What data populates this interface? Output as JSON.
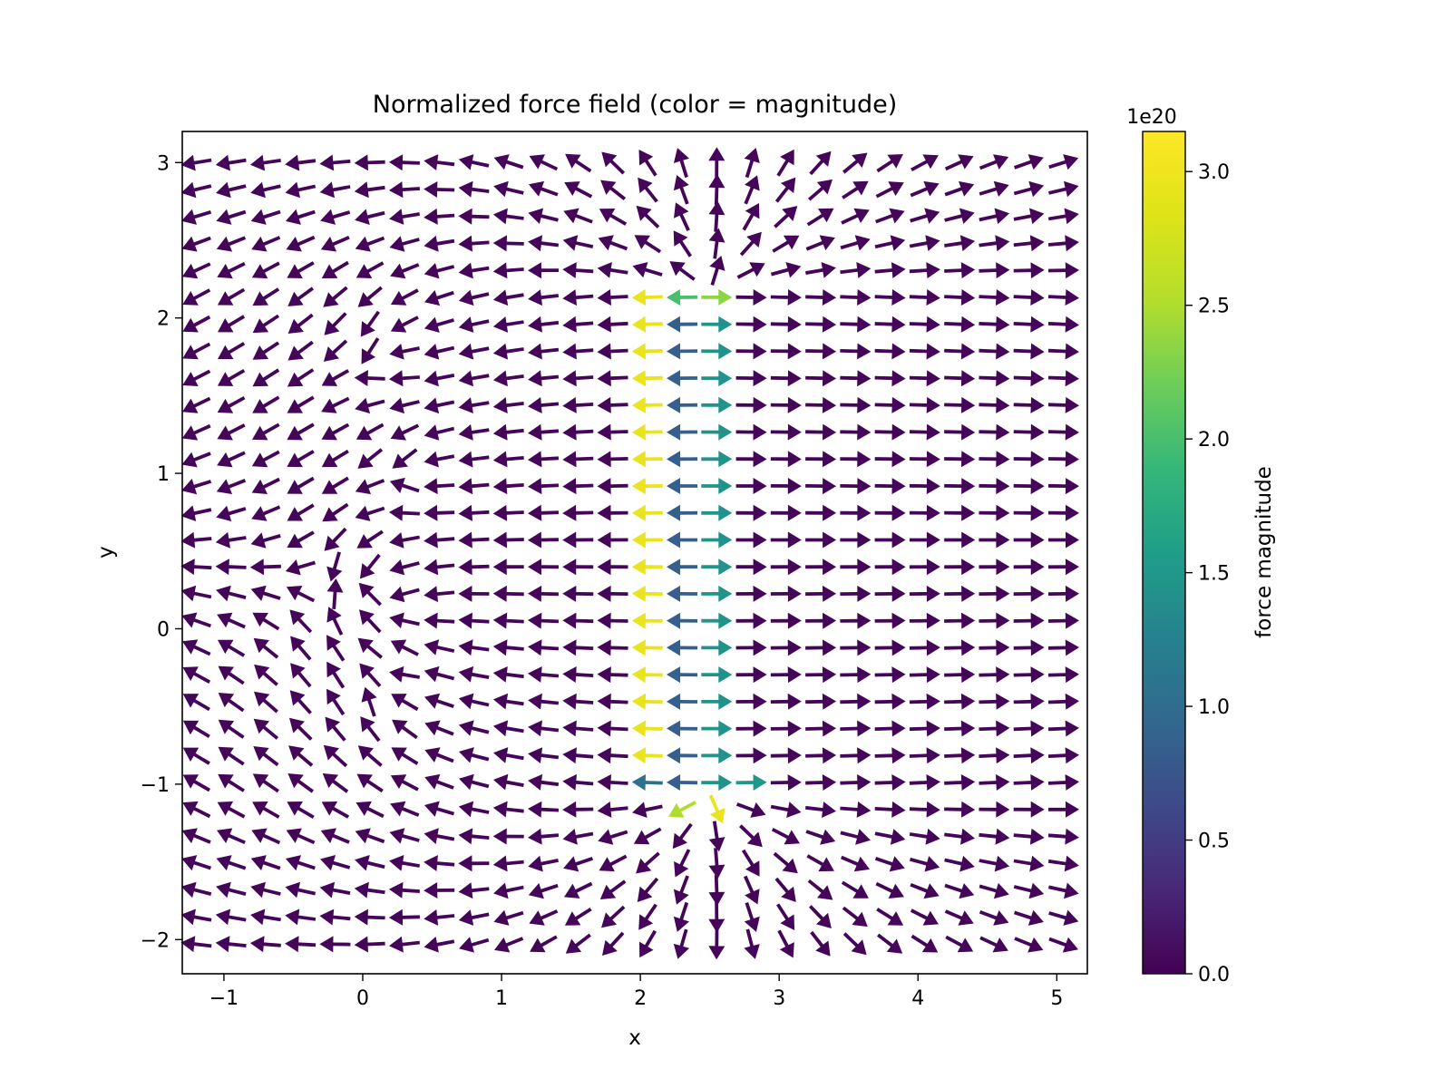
{
  "chart_data": {
    "type": "quiver",
    "title": "Normalized force field (color = magnitude)",
    "xlabel": "x",
    "ylabel": "y",
    "xlim": [
      -1.3,
      5.22
    ],
    "ylim": [
      -2.22,
      3.2
    ],
    "xticks": [
      -1,
      0,
      1,
      2,
      3,
      4,
      5
    ],
    "yticks": [
      -2,
      -1,
      0,
      1,
      2,
      3
    ],
    "xtick_labels": [
      "−1",
      "0",
      "1",
      "2",
      "3",
      "4",
      "5"
    ],
    "ytick_labels": [
      "−2",
      "−1",
      "0",
      "1",
      "2",
      "3"
    ],
    "grid": {
      "x_start": -1.2,
      "x_end": 5.05,
      "nx": 26,
      "y_start": -2.03,
      "y_end": 3.0,
      "ny": 30
    },
    "colormap": "viridis",
    "colorbar": {
      "label": "force magnitude",
      "exponent_label": "1e20",
      "range": [
        0,
        3.15
      ],
      "ticks": [
        0.0,
        0.5,
        1.0,
        1.5,
        2.0,
        2.5,
        3.0
      ],
      "tick_labels": [
        "0.0",
        "0.5",
        "1.0",
        "1.5",
        "2.0",
        "2.5",
        "3.0"
      ]
    },
    "field": {
      "description": "Unit arrows; direction from superposed sources, color = magnitude",
      "sources": [
        {
          "kind": "line_segment",
          "x": 2.5,
          "y_from": -1.05,
          "y_to": 2.15,
          "strength": 1.0
        },
        {
          "kind": "point_cluster",
          "points": [
            [
              0.15,
              1.8
            ],
            [
              0.3,
              1.0
            ],
            [
              0.05,
              0.3
            ],
            [
              0.35,
              0.05
            ],
            [
              0.2,
              -0.4
            ]
          ],
          "strength": 0.06
        }
      ],
      "highlight": {
        "left_near": 2.95,
        "left_next": 0.85,
        "right_near": 1.45,
        "top_left": 2.0,
        "top_right": 2.35,
        "bottom_left_near": 1.05,
        "bottom_left": 2.5,
        "bottom_right": 2.95,
        "bottom_right_near": 1.5
      }
    }
  }
}
